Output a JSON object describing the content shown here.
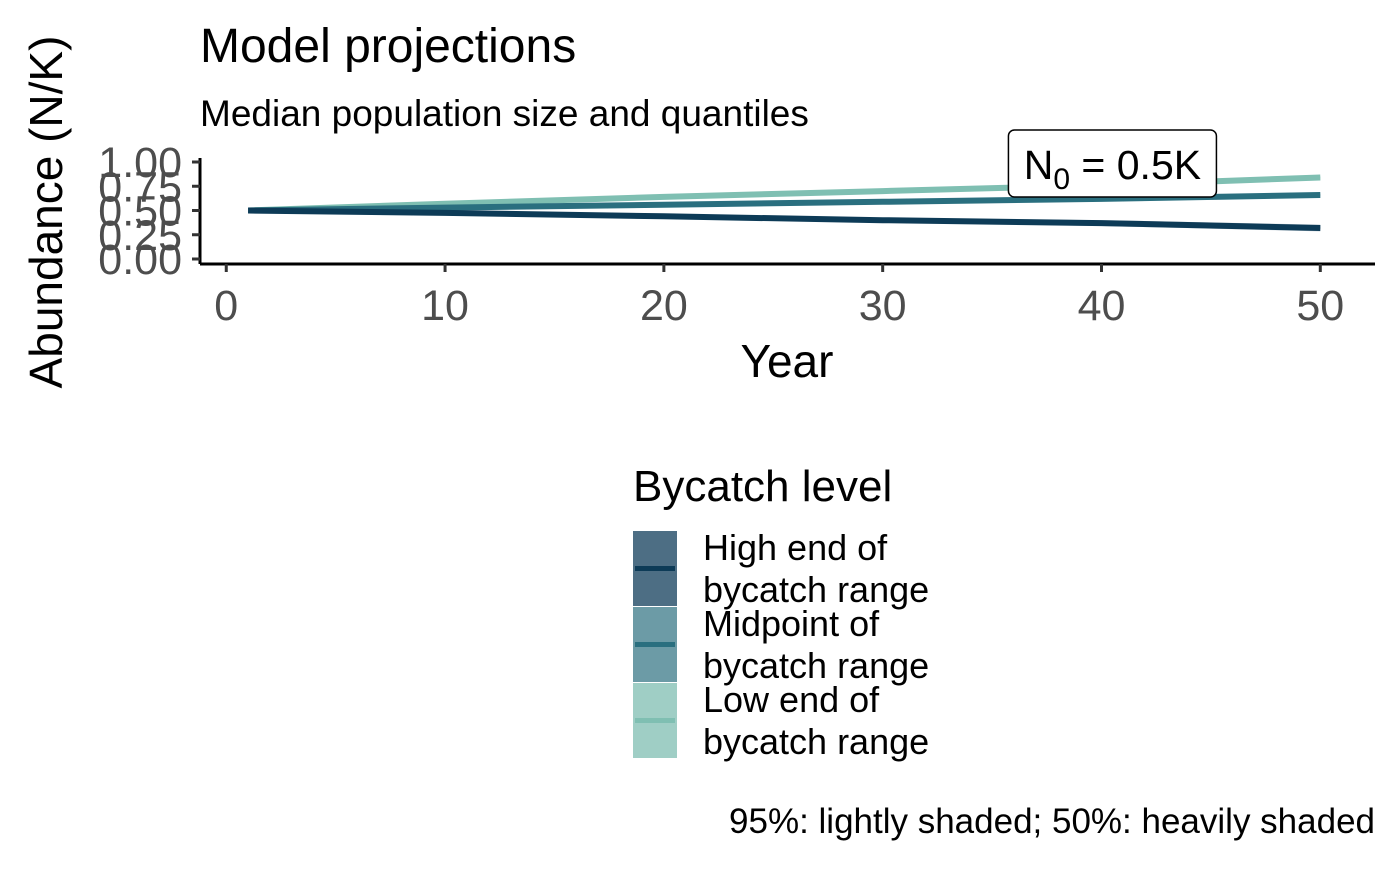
{
  "chart_data": {
    "type": "line",
    "title": "Model projections",
    "subtitle": "Median population size and quantiles",
    "xlabel": "Year",
    "ylabel": "Abundance  (N/K)",
    "xlim": [
      -1.2,
      52.5
    ],
    "ylim": [
      -0.05,
      1.05
    ],
    "x_ticks": [
      0,
      10,
      20,
      30,
      40,
      50
    ],
    "x_tick_labels": [
      "0",
      "10",
      "20",
      "30",
      "40",
      "50"
    ],
    "y_ticks": [
      0.0,
      0.25,
      0.5,
      0.75,
      1.0
    ],
    "y_tick_labels": [
      "0.00",
      "0.25",
      "0.50",
      "0.75",
      "1.00"
    ],
    "grid": false,
    "legend_position": "bottom",
    "annotation": {
      "text": "N",
      "subscript": "0",
      "suffix": " = 0.5K",
      "x": 40.5,
      "y": 0.98
    },
    "caption": "95%: lightly shaded; 50%: heavily shaded",
    "legend_title": "Bycatch level",
    "series": [
      {
        "name": "High end of bycatch range",
        "legend_lines": [
          "High end of",
          "bycatch range"
        ],
        "color": "#0d3b57",
        "fill": "#4d6e84",
        "x": [
          1,
          10,
          20,
          30,
          40,
          50
        ],
        "median": [
          0.5,
          0.475,
          0.44,
          0.4,
          0.37,
          0.32
        ],
        "q50": [
          [
            0.5,
            0.5
          ],
          [
            0.468,
            0.482
          ],
          [
            0.43,
            0.45
          ],
          [
            0.39,
            0.41
          ],
          [
            0.355,
            0.385
          ],
          [
            0.305,
            0.335
          ]
        ],
        "q95": [
          [
            0.5,
            0.5
          ],
          [
            0.46,
            0.49
          ],
          [
            0.42,
            0.46
          ],
          [
            0.375,
            0.425
          ],
          [
            0.34,
            0.4
          ],
          [
            0.285,
            0.355
          ]
        ]
      },
      {
        "name": "Midpoint of bycatch range",
        "legend_lines": [
          "Midpoint of",
          "bycatch range"
        ],
        "color": "#2a6f7f",
        "fill": "#6c9ba6",
        "x": [
          1,
          10,
          20,
          30,
          40,
          50
        ],
        "median": [
          0.5,
          0.53,
          0.56,
          0.59,
          0.62,
          0.66
        ],
        "q50": [
          [
            0.5,
            0.5
          ],
          [
            0.526,
            0.534
          ],
          [
            0.555,
            0.565
          ],
          [
            0.584,
            0.596
          ],
          [
            0.613,
            0.627
          ],
          [
            0.652,
            0.668
          ]
        ],
        "q95": [
          [
            0.5,
            0.5
          ],
          [
            0.52,
            0.54
          ],
          [
            0.548,
            0.572
          ],
          [
            0.576,
            0.604
          ],
          [
            0.604,
            0.636
          ],
          [
            0.642,
            0.678
          ]
        ]
      },
      {
        "name": "Low end of bycatch range",
        "legend_lines": [
          "Low end of",
          "bycatch range"
        ],
        "color": "#7fbfb2",
        "fill": "#9fcec5",
        "x": [
          1,
          10,
          20,
          30,
          40,
          50
        ],
        "median": [
          0.5,
          0.57,
          0.64,
          0.7,
          0.76,
          0.84
        ],
        "q50": [
          [
            0.5,
            0.5
          ],
          [
            0.566,
            0.574
          ],
          [
            0.635,
            0.645
          ],
          [
            0.694,
            0.706
          ],
          [
            0.753,
            0.767
          ],
          [
            0.832,
            0.848
          ]
        ],
        "q95": [
          [
            0.5,
            0.5
          ],
          [
            0.56,
            0.58
          ],
          [
            0.628,
            0.652
          ],
          [
            0.686,
            0.714
          ],
          [
            0.744,
            0.776
          ],
          [
            0.822,
            0.858
          ]
        ]
      }
    ]
  }
}
